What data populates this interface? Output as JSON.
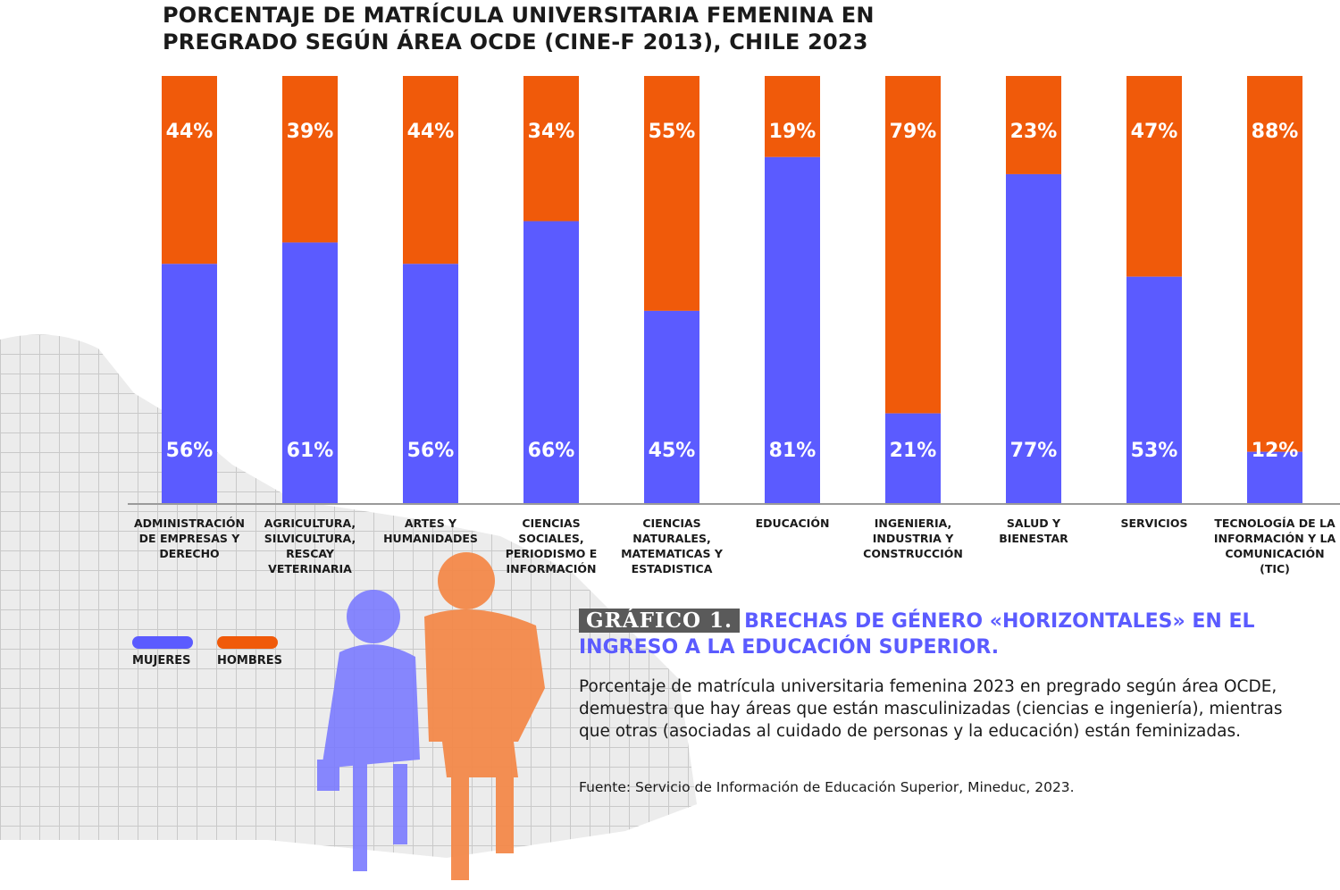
{
  "title": "PORCENTAJE DE MATRÍCULA UNIVERSITARIA FEMENINA EN\nPREGRADO SEGÚN ÁREA OCDE (CINE-F 2013), CHILE 2023",
  "chart_data": {
    "type": "bar",
    "stacked": true,
    "title": "PORCENTAJE DE MATRÍCULA UNIVERSITARIA FEMENINA EN PREGRADO SEGÚN ÁREA OCDE (CINE-F 2013), CHILE 2023",
    "categories": [
      "ADMINISTRACIÓN\nDE EMPRESAS Y\nDERECHO",
      "AGRICULTURA,\nSILVICULTURA,\nRESCAY\nVETERINARIA",
      "ARTES Y\nHUMANIDADES",
      "CIENCIAS\nSOCIALES,\nPERIODISMO E\nINFORMACIÓN",
      "CIENCIAS\nNATURALES,\nMATEMATICAS Y\nESTADISTICA",
      "EDUCACIÓN",
      "INGENIERIA,\nINDUSTRIA Y\nCONSTRUCCIÓN",
      "SALUD Y\nBIENESTAR",
      "SERVICIOS",
      "TECNOLOGÍA DE LA\nINFORMACIÓN Y LA\nCOMUNICACIÓN\n(TIC)"
    ],
    "series": [
      {
        "name": "MUJERES",
        "color": "#5b5bff",
        "values": [
          56,
          61,
          56,
          66,
          45,
          81,
          21,
          77,
          53,
          12
        ],
        "labels": [
          "56%",
          "61%",
          "56%",
          "66%",
          "45%",
          "81%",
          "21%",
          "77%",
          "53%",
          "12%"
        ]
      },
      {
        "name": "HOMBRES",
        "color": "#f05a0a",
        "values": [
          44,
          39,
          44,
          34,
          55,
          19,
          79,
          23,
          47,
          88
        ],
        "labels": [
          "44%",
          "39%",
          "44%",
          "34%",
          "55%",
          "19%",
          "79%",
          "23%",
          "47%",
          "88%"
        ]
      }
    ],
    "ylim": [
      0,
      100
    ],
    "legend": "bottom-left",
    "grid": false
  },
  "caption": {
    "tag": "GRÁFICO 1.",
    "subtitle": "BRECHAS DE GÉNERO «HORIZONTALES» EN EL INGRESO A LA EDUCACIÓN SUPERIOR.",
    "description": "Porcentaje de matrícula universitaria femenina 2023 en pregrado según área OCDE, demuestra que hay áreas que están masculinizadas (ciencias e ingeniería), mientras que otras (asociadas al cuidado de personas y la educación) están feminizadas.",
    "source": "Fuente: Servicio de Información de Educación Superior, Mineduc, 2023."
  }
}
